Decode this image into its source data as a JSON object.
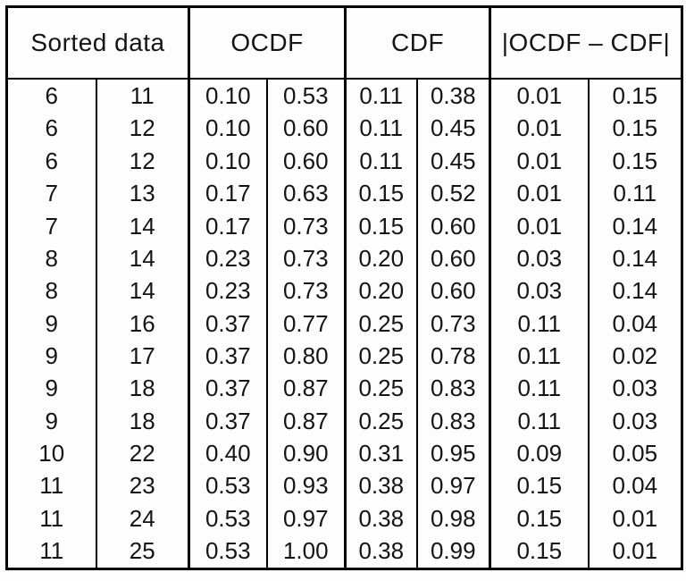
{
  "table": {
    "headers": [
      {
        "label": "Sorted data"
      },
      {
        "label": "OCDF"
      },
      {
        "label": "CDF"
      },
      {
        "label": "|OCDF – CDF|"
      }
    ],
    "rows": [
      [
        "6",
        "11",
        "0.10",
        "0.53",
        "0.11",
        "0.38",
        "0.01",
        "0.15"
      ],
      [
        "6",
        "12",
        "0.10",
        "0.60",
        "0.11",
        "0.45",
        "0.01",
        "0.15"
      ],
      [
        "6",
        "12",
        "0.10",
        "0.60",
        "0.11",
        "0.45",
        "0.01",
        "0.15"
      ],
      [
        "7",
        "13",
        "0.17",
        "0.63",
        "0.15",
        "0.52",
        "0.01",
        "0.11"
      ],
      [
        "7",
        "14",
        "0.17",
        "0.73",
        "0.15",
        "0.60",
        "0.01",
        "0.14"
      ],
      [
        "8",
        "14",
        "0.23",
        "0.73",
        "0.20",
        "0.60",
        "0.03",
        "0.14"
      ],
      [
        "8",
        "14",
        "0.23",
        "0.73",
        "0.20",
        "0.60",
        "0.03",
        "0.14"
      ],
      [
        "9",
        "16",
        "0.37",
        "0.77",
        "0.25",
        "0.73",
        "0.11",
        "0.04"
      ],
      [
        "9",
        "17",
        "0.37",
        "0.80",
        "0.25",
        "0.78",
        "0.11",
        "0.02"
      ],
      [
        "9",
        "18",
        "0.37",
        "0.87",
        "0.25",
        "0.83",
        "0.11",
        "0.03"
      ],
      [
        "9",
        "18",
        "0.37",
        "0.87",
        "0.25",
        "0.83",
        "0.11",
        "0.03"
      ],
      [
        "10",
        "22",
        "0.40",
        "0.90",
        "0.31",
        "0.95",
        "0.09",
        "0.05"
      ],
      [
        "11",
        "23",
        "0.53",
        "0.93",
        "0.38",
        "0.97",
        "0.15",
        "0.04"
      ],
      [
        "11",
        "24",
        "0.53",
        "0.97",
        "0.38",
        "0.98",
        "0.15",
        "0.01"
      ],
      [
        "11",
        "25",
        "0.53",
        "1.00",
        "0.38",
        "0.99",
        "0.15",
        "0.01"
      ]
    ]
  },
  "chart_data": {
    "type": "table",
    "title": "",
    "column_groups": [
      "Sorted data",
      "OCDF",
      "CDF",
      "|OCDF – CDF|"
    ],
    "columns_per_group": 2,
    "rows": [
      [
        6,
        11,
        0.1,
        0.53,
        0.11,
        0.38,
        0.01,
        0.15
      ],
      [
        6,
        12,
        0.1,
        0.6,
        0.11,
        0.45,
        0.01,
        0.15
      ],
      [
        6,
        12,
        0.1,
        0.6,
        0.11,
        0.45,
        0.01,
        0.15
      ],
      [
        7,
        13,
        0.17,
        0.63,
        0.15,
        0.52,
        0.01,
        0.11
      ],
      [
        7,
        14,
        0.17,
        0.73,
        0.15,
        0.6,
        0.01,
        0.14
      ],
      [
        8,
        14,
        0.23,
        0.73,
        0.2,
        0.6,
        0.03,
        0.14
      ],
      [
        8,
        14,
        0.23,
        0.73,
        0.2,
        0.6,
        0.03,
        0.14
      ],
      [
        9,
        16,
        0.37,
        0.77,
        0.25,
        0.73,
        0.11,
        0.04
      ],
      [
        9,
        17,
        0.37,
        0.8,
        0.25,
        0.78,
        0.11,
        0.02
      ],
      [
        9,
        18,
        0.37,
        0.87,
        0.25,
        0.83,
        0.11,
        0.03
      ],
      [
        9,
        18,
        0.37,
        0.87,
        0.25,
        0.83,
        0.11,
        0.03
      ],
      [
        10,
        22,
        0.4,
        0.9,
        0.31,
        0.95,
        0.09,
        0.05
      ],
      [
        11,
        23,
        0.53,
        0.93,
        0.38,
        0.97,
        0.15,
        0.04
      ],
      [
        11,
        24,
        0.53,
        0.97,
        0.38,
        0.98,
        0.15,
        0.01
      ],
      [
        11,
        25,
        0.53,
        1.0,
        0.38,
        0.99,
        0.15,
        0.01
      ]
    ]
  },
  "colors": {
    "border": "#000000",
    "background": "#fdfdfd",
    "text": "#141414"
  }
}
